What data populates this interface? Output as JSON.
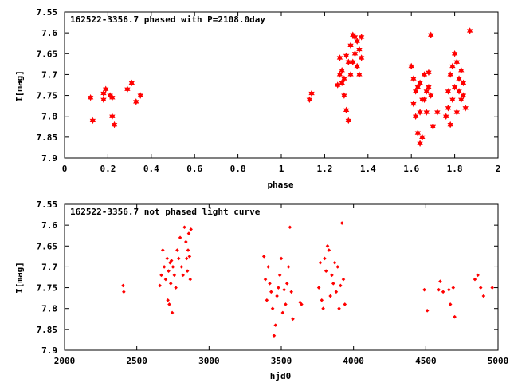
{
  "chart_data": [
    {
      "type": "scatter",
      "title": "162522-3356.7 phased with P=2108.0day",
      "xlabel": "phase",
      "ylabel": "I[mag]",
      "xlim": [
        0,
        2
      ],
      "ylim": [
        7.55,
        7.9
      ],
      "y_inverted": true,
      "x_ticks": [
        "0",
        "0.2",
        "0.4",
        "0.6",
        "0.8",
        "1",
        "1.2",
        "1.4",
        "1.6",
        "1.8",
        "2"
      ],
      "y_ticks": [
        "7.55",
        "7.6",
        "7.65",
        "7.7",
        "7.75",
        "7.8",
        "7.85",
        "7.9"
      ],
      "marker": "star",
      "color": "#ff0000",
      "series": [
        {
          "x": [
            0.12,
            0.13,
            0.18,
            0.18,
            0.19,
            0.21,
            0.22,
            0.22,
            0.23,
            0.29,
            0.31,
            0.33,
            0.35,
            1.13,
            1.14,
            1.26,
            1.27,
            1.27,
            1.28,
            1.28,
            1.29,
            1.29,
            1.3,
            1.3,
            1.31,
            1.31,
            1.32,
            1.32,
            1.33,
            1.33,
            1.34,
            1.34,
            1.35,
            1.35,
            1.36,
            1.36,
            1.37,
            1.37,
            1.6,
            1.61,
            1.61,
            1.62,
            1.62,
            1.63,
            1.63,
            1.64,
            1.64,
            1.64,
            1.65,
            1.65,
            1.66,
            1.66,
            1.67,
            1.67,
            1.68,
            1.68,
            1.69,
            1.69,
            1.7,
            1.72,
            1.76,
            1.77,
            1.77,
            1.78,
            1.78,
            1.79,
            1.79,
            1.8,
            1.8,
            1.81,
            1.81,
            1.82,
            1.82,
            1.83,
            1.83,
            1.84,
            1.84,
            1.85,
            1.87
          ],
          "y": [
            7.755,
            7.81,
            7.745,
            7.76,
            7.735,
            7.75,
            7.8,
            7.755,
            7.82,
            7.735,
            7.72,
            7.765,
            7.75,
            7.76,
            7.745,
            7.725,
            7.7,
            7.66,
            7.69,
            7.72,
            7.75,
            7.71,
            7.785,
            7.655,
            7.81,
            7.67,
            7.7,
            7.63,
            7.67,
            7.605,
            7.61,
            7.65,
            7.62,
            7.68,
            7.64,
            7.7,
            7.61,
            7.66,
            7.68,
            7.71,
            7.77,
            7.8,
            7.74,
            7.84,
            7.73,
            7.865,
            7.79,
            7.72,
            7.85,
            7.76,
            7.7,
            7.76,
            7.74,
            7.79,
            7.73,
            7.695,
            7.605,
            7.75,
            7.825,
            7.79,
            7.8,
            7.74,
            7.78,
            7.7,
            7.82,
            7.76,
            7.68,
            7.65,
            7.73,
            7.67,
            7.79,
            7.74,
            7.71,
            7.76,
            7.69,
            7.72,
            7.75,
            7.78,
            7.595
          ]
        }
      ]
    },
    {
      "type": "scatter",
      "title": "162522-3356.7 not phased light curve",
      "xlabel": "hjd0",
      "ylabel": "I[mag]",
      "xlim": [
        2000,
        5000
      ],
      "ylim": [
        7.55,
        7.9
      ],
      "y_inverted": true,
      "x_ticks": [
        "2000",
        "2500",
        "3000",
        "3500",
        "4000",
        "4500",
        "5000"
      ],
      "y_ticks": [
        "7.55",
        "7.6",
        "7.65",
        "7.7",
        "7.75",
        "7.8",
        "7.85",
        "7.9"
      ],
      "marker": "diamond",
      "color": "#ff0000",
      "series": [
        {
          "x": [
            2405,
            2410,
            2660,
            2670,
            2680,
            2690,
            2700,
            2710,
            2715,
            2720,
            2725,
            2730,
            2735,
            2740,
            2745,
            2750,
            2760,
            2770,
            2780,
            2790,
            2800,
            2810,
            2820,
            2830,
            2840,
            2845,
            2850,
            2855,
            2860,
            2865,
            2870,
            2875,
            3380,
            3390,
            3400,
            3410,
            3420,
            3430,
            3440,
            3450,
            3460,
            3470,
            3480,
            3490,
            3500,
            3510,
            3520,
            3530,
            3540,
            3550,
            3560,
            3570,
            3580,
            3630,
            3640,
            3760,
            3770,
            3780,
            3790,
            3800,
            3810,
            3820,
            3830,
            3840,
            3850,
            3860,
            3870,
            3880,
            3890,
            3900,
            3910,
            3920,
            3930,
            3940,
            4490,
            4510,
            4590,
            4600,
            4620,
            4660,
            4670,
            4690,
            4700,
            4840,
            4860,
            4880,
            4900,
            4960
          ],
          "y": [
            7.745,
            7.76,
            7.745,
            7.72,
            7.66,
            7.7,
            7.73,
            7.68,
            7.78,
            7.71,
            7.79,
            7.69,
            7.74,
            7.685,
            7.81,
            7.7,
            7.72,
            7.75,
            7.66,
            7.68,
            7.63,
            7.7,
            7.72,
            7.605,
            7.64,
            7.68,
            7.71,
            7.66,
            7.62,
            7.675,
            7.73,
            7.61,
            7.675,
            7.73,
            7.78,
            7.7,
            7.74,
            7.76,
            7.8,
            7.865,
            7.84,
            7.77,
            7.75,
            7.72,
            7.68,
            7.81,
            7.755,
            7.79,
            7.74,
            7.7,
            7.605,
            7.76,
            7.825,
            7.785,
            7.79,
            7.75,
            7.69,
            7.78,
            7.8,
            7.68,
            7.71,
            7.65,
            7.66,
            7.77,
            7.72,
            7.74,
            7.69,
            7.76,
            7.7,
            7.8,
            7.745,
            7.595,
            7.73,
            7.79,
            7.755,
            7.805,
            7.755,
            7.735,
            7.76,
            7.755,
            7.79,
            7.75,
            7.82,
            7.73,
            7.72,
            7.75,
            7.77,
            7.75
          ]
        }
      ]
    }
  ]
}
